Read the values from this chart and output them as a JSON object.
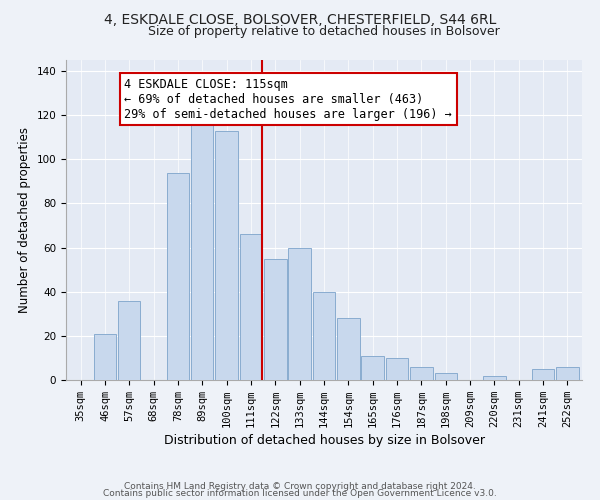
{
  "title": "4, ESKDALE CLOSE, BOLSOVER, CHESTERFIELD, S44 6RL",
  "subtitle": "Size of property relative to detached houses in Bolsover",
  "xlabel": "Distribution of detached houses by size in Bolsover",
  "ylabel": "Number of detached properties",
  "bar_labels": [
    "35sqm",
    "46sqm",
    "57sqm",
    "68sqm",
    "78sqm",
    "89sqm",
    "100sqm",
    "111sqm",
    "122sqm",
    "133sqm",
    "144sqm",
    "154sqm",
    "165sqm",
    "176sqm",
    "187sqm",
    "198sqm",
    "209sqm",
    "220sqm",
    "231sqm",
    "241sqm",
    "252sqm"
  ],
  "bar_values": [
    0,
    21,
    36,
    0,
    94,
    118,
    113,
    66,
    55,
    60,
    40,
    28,
    11,
    10,
    6,
    3,
    0,
    2,
    0,
    5,
    6
  ],
  "bar_color": "#c8d8ed",
  "bar_edge_color": "#89acd0",
  "vline_x_idx": 7,
  "vline_color": "#cc0000",
  "annotation_line1": "4 ESKDALE CLOSE: 115sqm",
  "annotation_line2": "← 69% of detached houses are smaller (463)",
  "annotation_line3": "29% of semi-detached houses are larger (196) →",
  "annotation_box_color": "#ffffff",
  "annotation_box_edge_color": "#cc0000",
  "ylim": [
    0,
    145
  ],
  "yticks": [
    0,
    20,
    40,
    60,
    80,
    100,
    120,
    140
  ],
  "footer_line1": "Contains HM Land Registry data © Crown copyright and database right 2024.",
  "footer_line2": "Contains public sector information licensed under the Open Government Licence v3.0.",
  "bg_color": "#eef2f8",
  "plot_bg_color": "#e4eaf4",
  "grid_color": "#ffffff",
  "title_fontsize": 10,
  "subtitle_fontsize": 9,
  "ylabel_fontsize": 8.5,
  "xlabel_fontsize": 9,
  "tick_fontsize": 7.5,
  "footer_fontsize": 6.5,
  "annotation_fontsize": 8.5
}
